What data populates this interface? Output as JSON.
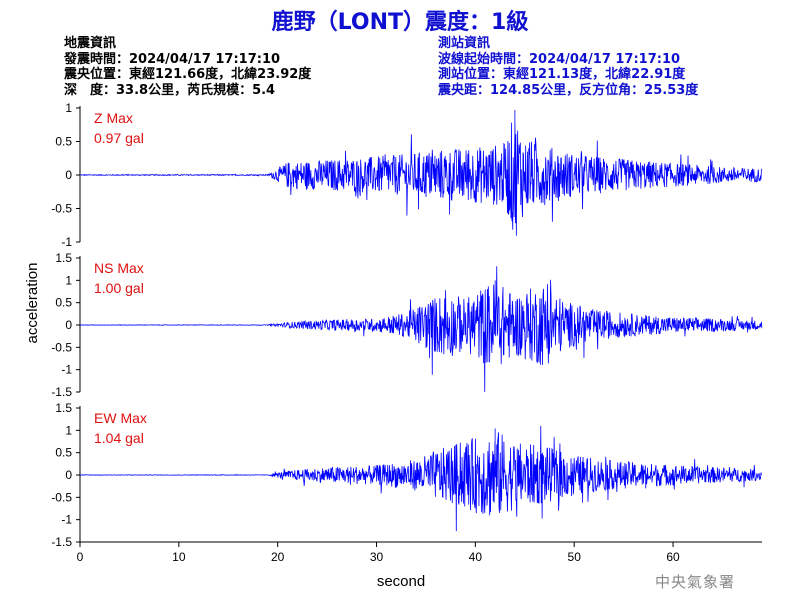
{
  "header": {
    "title": "鹿野（LONT）震度：1級",
    "left_lines": [
      "地震資訊",
      "發震時間：2024/04/17 17:17:10",
      "震央位置：東經121.66度，北緯23.92度",
      "深　度：33.8公里，芮氏規模：5.4"
    ],
    "right_lines": [
      "測站資訊",
      "波線起始時間：2024/04/17 17:17:10",
      "測站位置：東經121.13度，北緯22.91度",
      "震央距：124.85公里，反方位角：25.53度"
    ]
  },
  "watermark": "中央氣象署",
  "colors": {
    "title": "#1010d0",
    "trace": "#0000ff",
    "max_label": "#e01010",
    "axis": "#000000",
    "info_right": "#1010d0"
  },
  "chart_data": {
    "type": "line",
    "xlabel": "second",
    "ylabel": "acceleration",
    "xlim": [
      0,
      69
    ],
    "x_ticks": [
      "0",
      "10",
      "20",
      "30",
      "40",
      "50",
      "60"
    ],
    "panels": [
      {
        "name": "Z",
        "max_label_1": "Z Max",
        "max_label_2": "0.97 gal",
        "ylim": [
          -1,
          1
        ],
        "y_ticks": [
          "1",
          "0.5",
          "0",
          "-0.5",
          "-1"
        ],
        "envelope": [
          [
            0,
            0.006
          ],
          [
            19,
            0.008
          ],
          [
            20,
            0.1
          ],
          [
            21,
            0.2
          ],
          [
            24,
            0.22
          ],
          [
            28,
            0.26
          ],
          [
            32,
            0.3
          ],
          [
            36,
            0.38
          ],
          [
            40,
            0.42
          ],
          [
            43,
            0.48
          ],
          [
            44,
            0.97
          ],
          [
            45,
            0.55
          ],
          [
            47,
            0.45
          ],
          [
            50,
            0.32
          ],
          [
            55,
            0.24
          ],
          [
            60,
            0.18
          ],
          [
            65,
            0.12
          ],
          [
            69,
            0.1
          ]
        ]
      },
      {
        "name": "NS",
        "max_label_1": "NS Max",
        "max_label_2": "1.00 gal",
        "ylim": [
          -1.5,
          1.5
        ],
        "y_ticks": [
          "1.5",
          "1",
          "0.5",
          "0",
          "-0.5",
          "-1",
          "-1.5"
        ],
        "envelope": [
          [
            0,
            0.005
          ],
          [
            19,
            0.006
          ],
          [
            20,
            0.04
          ],
          [
            22,
            0.08
          ],
          [
            25,
            0.12
          ],
          [
            30,
            0.15
          ],
          [
            33,
            0.28
          ],
          [
            35,
            0.55
          ],
          [
            37,
            0.75
          ],
          [
            39,
            0.6
          ],
          [
            41,
            0.9
          ],
          [
            42,
            1.0
          ],
          [
            44,
            0.7
          ],
          [
            47,
            0.95
          ],
          [
            49,
            0.55
          ],
          [
            52,
            0.35
          ],
          [
            56,
            0.25
          ],
          [
            60,
            0.18
          ],
          [
            65,
            0.14
          ],
          [
            69,
            0.1
          ]
        ]
      },
      {
        "name": "EW",
        "max_label_1": "EW Max",
        "max_label_2": "1.04 gal",
        "ylim": [
          -1.5,
          1.5
        ],
        "y_ticks": [
          "1.5",
          "1",
          "0.5",
          "0",
          "-0.5",
          "-1",
          "-1.5"
        ],
        "envelope": [
          [
            0,
            0.005
          ],
          [
            19,
            0.006
          ],
          [
            20,
            0.06
          ],
          [
            22,
            0.12
          ],
          [
            25,
            0.18
          ],
          [
            30,
            0.22
          ],
          [
            34,
            0.35
          ],
          [
            36,
            0.55
          ],
          [
            38,
            0.7
          ],
          [
            40,
            0.85
          ],
          [
            42,
            1.04
          ],
          [
            44,
            0.75
          ],
          [
            47,
            0.65
          ],
          [
            50,
            0.45
          ],
          [
            54,
            0.32
          ],
          [
            58,
            0.26
          ],
          [
            62,
            0.2
          ],
          [
            66,
            0.16
          ],
          [
            69,
            0.12
          ]
        ]
      }
    ]
  }
}
